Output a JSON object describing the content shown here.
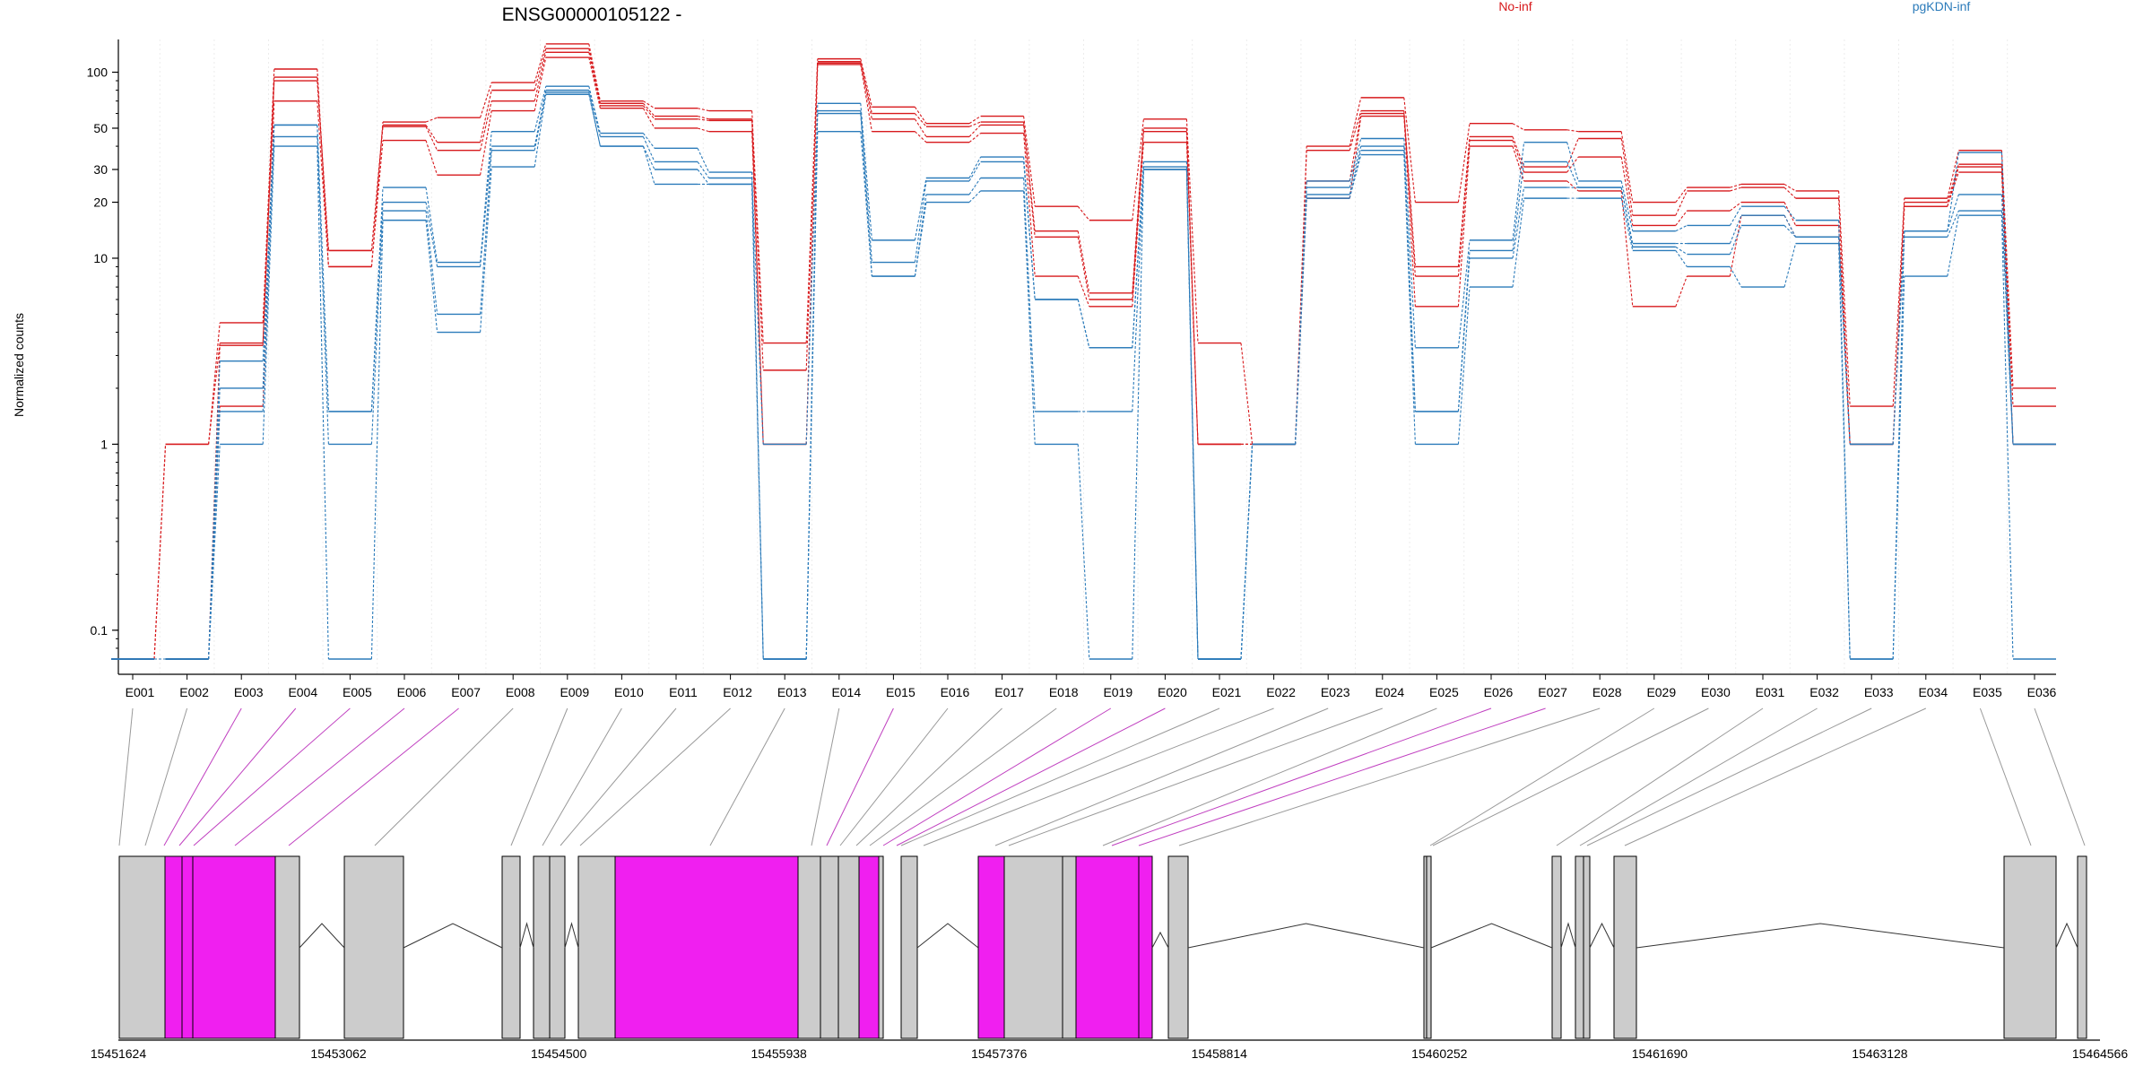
{
  "chart_data": {
    "type": "line",
    "title": "ENSG00000105122 -",
    "ylabel": "Normalized counts",
    "yscale": "log",
    "ylim": [
      0.07,
      150
    ],
    "y_ticks": [
      {
        "value": 0.1,
        "label": "0.1"
      },
      {
        "value": 1,
        "label": "1"
      },
      {
        "value": 10,
        "label": "10"
      },
      {
        "value": 20,
        "label": "20"
      },
      {
        "value": 30,
        "label": "30"
      },
      {
        "value": 50,
        "label": "50"
      },
      {
        "value": 100,
        "label": "100"
      }
    ],
    "categories": [
      "E001",
      "E002",
      "E003",
      "E004",
      "E005",
      "E006",
      "E007",
      "E008",
      "E009",
      "E010",
      "E011",
      "E012",
      "E013",
      "E014",
      "E015",
      "E016",
      "E017",
      "E018",
      "E019",
      "E020",
      "E021",
      "E022",
      "E023",
      "E024",
      "E025",
      "E026",
      "E027",
      "E028",
      "E029",
      "E030",
      "E031",
      "E032",
      "E033",
      "E034",
      "E035",
      "E036"
    ],
    "legend": [
      {
        "label": "No-inf",
        "color": "#d7191c"
      },
      {
        "label": "pgKDN-inf",
        "color": "#2b7bba"
      }
    ],
    "series": [
      {
        "group": "No-inf",
        "values": [
          0.07,
          1,
          4.5,
          104,
          9,
          54,
          57,
          88,
          142,
          70,
          64,
          62,
          3.5,
          118,
          65,
          53,
          58,
          19,
          16,
          56,
          3.5,
          1,
          40,
          73,
          20,
          53,
          49,
          48,
          20,
          24,
          25,
          23,
          1.6,
          21,
          38,
          2
        ]
      },
      {
        "group": "No-inf",
        "values": [
          0.07,
          1,
          3.5,
          94,
          11,
          52,
          42,
          80,
          134,
          68,
          58,
          56,
          2.5,
          114,
          60,
          51,
          54,
          14,
          6.5,
          50,
          1,
          1,
          38,
          62,
          9,
          45,
          31,
          44,
          17,
          23,
          24,
          21,
          1,
          20,
          32,
          1.6
        ]
      },
      {
        "group": "No-inf",
        "values": [
          0.07,
          0.07,
          3.4,
          90,
          11,
          51,
          38,
          70,
          128,
          66,
          56,
          55,
          1,
          112,
          56,
          45,
          52,
          13,
          6,
          48,
          1,
          1,
          26,
          60,
          8,
          43,
          29,
          35,
          15,
          18,
          20,
          15,
          1,
          19,
          31,
          1
        ]
      },
      {
        "group": "No-inf",
        "values": [
          0.07,
          0.07,
          1.6,
          70,
          9,
          43,
          28,
          62,
          120,
          64,
          50,
          48,
          1,
          110,
          48,
          42,
          47,
          8,
          5.5,
          42,
          1,
          1,
          21,
          58,
          5.5,
          40,
          26,
          23,
          5.5,
          8,
          17,
          13,
          1,
          19,
          29,
          1
        ]
      },
      {
        "group": "pgKDN-inf",
        "values": [
          0.07,
          0.07,
          2.8,
          52,
          1.5,
          24,
          9.5,
          48,
          84,
          47,
          39,
          29,
          0.07,
          68,
          12.5,
          27,
          35,
          6,
          3.3,
          33,
          0.07,
          1,
          26,
          44,
          3.3,
          12.5,
          42,
          26,
          14,
          15,
          19,
          16,
          0.07,
          14,
          37,
          1
        ]
      },
      {
        "group": "pgKDN-inf",
        "values": [
          0.07,
          0.07,
          2,
          52,
          1.5,
          20,
          9,
          40,
          80,
          45,
          33,
          27,
          1,
          62,
          9.5,
          26,
          33,
          6,
          3.3,
          31,
          0.07,
          1,
          24,
          40,
          1.5,
          11,
          33,
          24,
          12,
          12,
          17,
          13,
          1,
          14,
          22,
          1
        ]
      },
      {
        "group": "pgKDN-inf",
        "values": [
          0.07,
          0.07,
          1.5,
          45,
          1,
          18,
          5,
          38,
          78,
          40,
          30,
          25,
          0.07,
          60,
          8,
          22,
          27,
          1.5,
          1.5,
          30,
          0.07,
          1,
          22,
          38,
          1.5,
          10,
          24,
          24,
          11.5,
          10.5,
          15,
          13,
          1,
          13,
          18,
          1
        ]
      },
      {
        "group": "pgKDN-inf",
        "values": [
          0.07,
          0.07,
          1,
          40,
          0.07,
          16,
          4,
          31,
          76,
          40,
          25,
          25,
          0.07,
          48,
          8,
          20,
          23,
          1,
          0.07,
          30,
          0.07,
          1,
          21,
          36,
          1,
          7,
          21,
          21,
          11,
          9,
          7,
          12,
          0.07,
          8,
          17,
          0.07
        ]
      }
    ],
    "gene_model": {
      "coordinate_ticks": [
        "15451624",
        "15453062",
        "15454500",
        "15455938",
        "15457376",
        "15458814",
        "15460252",
        "15461690",
        "15463128",
        "15464566"
      ],
      "highlight_color": "#f01ff0",
      "exon_color": "#cccccc",
      "highlighted_exons": [
        "E003",
        "E004",
        "E005",
        "E006",
        "E007",
        "E015",
        "E019",
        "E020",
        "E026",
        "E027"
      ]
    }
  }
}
